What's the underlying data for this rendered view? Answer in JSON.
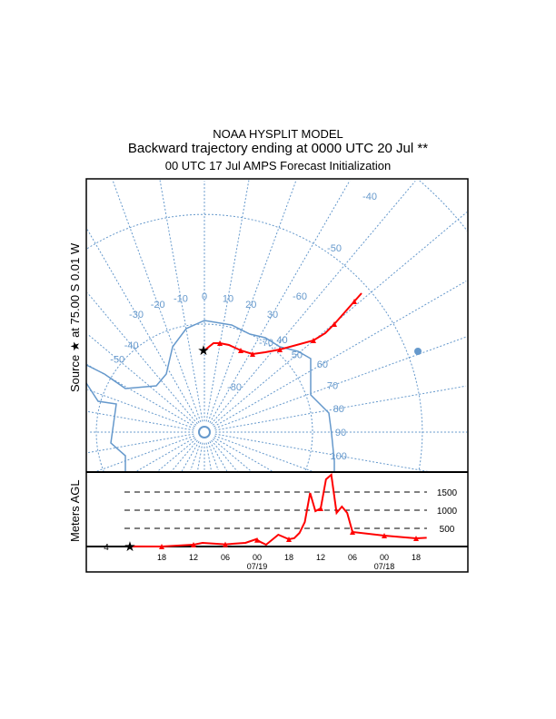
{
  "title": {
    "line1": "NOAA HYSPLIT MODEL",
    "line2": "Backward trajectory ending at 0000 UTC 20 Jul **",
    "line3": "00 UTC 17 Jul    AMPS  Forecast Initialization"
  },
  "source_label": "Source ★ at  75.00 S   0.01 W",
  "height_axis_label": "Meters AGL",
  "colors": {
    "trajectory": "#ff0000",
    "grid": "#6699cc",
    "frame": "#000000"
  },
  "map": {
    "latitude_labels": [
      "-40",
      "-50",
      "-60",
      "-70",
      "-80"
    ],
    "longitude_labels": [
      "-50",
      "-40",
      "-30",
      "-20",
      "-10",
      "0",
      "10",
      "20",
      "30",
      "40",
      "50",
      "60",
      "70",
      "80",
      "90",
      "100"
    ],
    "source": {
      "lat": -75.0,
      "lon": -0.01
    },
    "trajectory_latlon": [
      [
        -75.0,
        0
      ],
      [
        -73.3,
        8
      ],
      [
        -72.6,
        14
      ],
      [
        -72.3,
        20
      ],
      [
        -71.8,
        27
      ],
      [
        -70.8,
        33
      ],
      [
        -69.5,
        40
      ],
      [
        -68.5,
        46
      ],
      [
        -66.4,
        52
      ],
      [
        -64.3,
        56
      ],
      [
        -62.7,
        57
      ],
      [
        -61.0,
        59
      ],
      [
        -58.5,
        61
      ],
      [
        -56.6,
        62
      ]
    ]
  },
  "chart_data": {
    "type": "line",
    "title": "",
    "ylabel": "Meters AGL",
    "start_height_label": "4",
    "ylim": [
      0,
      2000
    ],
    "y_gridlines": [
      500,
      1000,
      1500
    ],
    "y_gridline_labels": [
      "500",
      "1000",
      "1500"
    ],
    "x_unit": "hours before 0000 UTC 20 Jul",
    "xlim": [
      0,
      72
    ],
    "x_ticks": [
      {
        "h": 6,
        "label": "18",
        "date": ""
      },
      {
        "h": 12,
        "label": "12",
        "date": ""
      },
      {
        "h": 18,
        "label": "06",
        "date": ""
      },
      {
        "h": 24,
        "label": "00",
        "date": "07/19"
      },
      {
        "h": 30,
        "label": "18",
        "date": ""
      },
      {
        "h": 36,
        "label": "12",
        "date": ""
      },
      {
        "h": 42,
        "label": "06",
        "date": ""
      },
      {
        "h": 48,
        "label": "00",
        "date": "07/18"
      },
      {
        "h": 54,
        "label": "18",
        "date": ""
      }
    ],
    "series": [
      {
        "name": "trajectory height",
        "x": [
          0,
          6,
          12,
          13.7,
          18,
          21.8,
          23.8,
          24.7,
          25.7,
          28,
          30,
          31,
          32,
          33,
          34,
          35,
          36,
          37,
          38,
          39,
          40,
          41,
          42,
          48,
          54,
          56
        ],
        "y": [
          4,
          0,
          50,
          100,
          60,
          100,
          200,
          120,
          50,
          325,
          200,
          230,
          375,
          675,
          1475,
          975,
          1050,
          1850,
          1975,
          925,
          1100,
          925,
          400,
          300,
          225,
          240
        ],
        "markers_x": [
          6,
          12,
          18,
          24,
          30,
          36,
          42,
          48,
          54
        ]
      }
    ]
  }
}
